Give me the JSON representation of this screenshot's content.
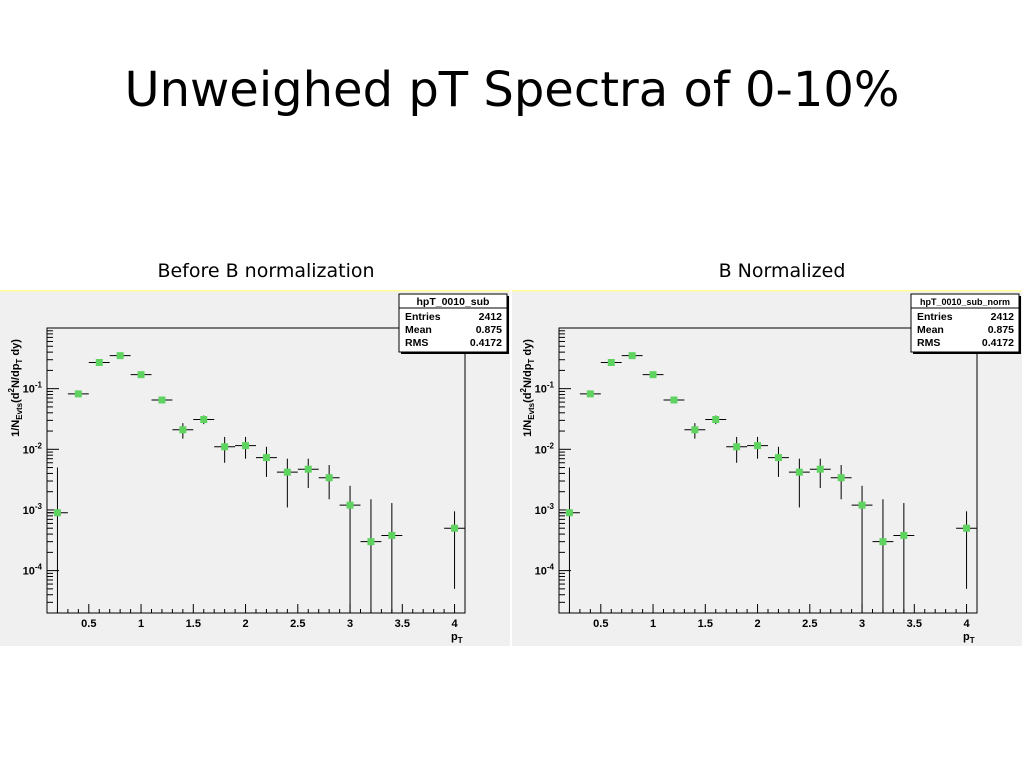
{
  "slide": {
    "title": "Unweighed pT Spectra of 0-10%"
  },
  "panels": [
    {
      "caption": "Before B normalization"
    },
    {
      "caption": "B Normalized"
    }
  ],
  "colors": {
    "background": "#ffffff",
    "plot_background": "#f0f0f0",
    "marker": "#5fd35f",
    "axis": "#000000",
    "panel_border": "#ffff99"
  },
  "icons": {
    "marker": "green-square-marker"
  },
  "chart_data": [
    {
      "type": "scatter",
      "title": "",
      "xlabel": "p_T",
      "ylabel": "1/N_Evts(d²N/dp_T dy)",
      "ylabel_parts": {
        "a": "1/N",
        "a_sub": "Evts",
        "b": "(d",
        "b_sup": "2",
        "c": "N/dp",
        "c_sub": "T",
        "d": " dy)"
      },
      "xlabel_parts": {
        "main": "p",
        "sub": "T"
      },
      "xlim": [
        0.1,
        4.1
      ],
      "ylim": [
        2e-05,
        1.0
      ],
      "yscale": "log",
      "grid": false,
      "x_ticks": [
        "0.5",
        "1",
        "1.5",
        "2",
        "2.5",
        "3",
        "3.5",
        "4"
      ],
      "y_ticks": [
        {
          "base": "10",
          "exp": "-1"
        },
        {
          "base": "10",
          "exp": "-2"
        },
        {
          "base": "10",
          "exp": "-3"
        },
        {
          "base": "10",
          "exp": "-4"
        }
      ],
      "stats_box": {
        "name": "hpT_0010_sub",
        "placement": "top-right",
        "rows": [
          {
            "label": "Entries",
            "value": "2412"
          },
          {
            "label": "Mean",
            "value": "0.875"
          },
          {
            "label": "RMS",
            "value": "0.4172"
          }
        ]
      },
      "series": [
        {
          "points": [
            {
              "x": 0.2,
              "y": 0.0009,
              "xerr": 0.1,
              "ylo": 1e-05,
              "yhi": 0.005
            },
            {
              "x": 0.4,
              "y": 0.082,
              "xerr": 0.1,
              "ylo": 0.082,
              "yhi": 0.082
            },
            {
              "x": 0.6,
              "y": 0.27,
              "xerr": 0.1,
              "ylo": 0.27,
              "yhi": 0.27
            },
            {
              "x": 0.8,
              "y": 0.35,
              "xerr": 0.1,
              "ylo": 0.35,
              "yhi": 0.35
            },
            {
              "x": 1.0,
              "y": 0.17,
              "xerr": 0.1,
              "ylo": 0.17,
              "yhi": 0.17
            },
            {
              "x": 1.2,
              "y": 0.065,
              "xerr": 0.1,
              "ylo": 0.065,
              "yhi": 0.065
            },
            {
              "x": 1.4,
              "y": 0.021,
              "xerr": 0.1,
              "ylo": 0.015,
              "yhi": 0.027
            },
            {
              "x": 1.6,
              "y": 0.031,
              "xerr": 0.1,
              "ylo": 0.026,
              "yhi": 0.036
            },
            {
              "x": 1.8,
              "y": 0.011,
              "xerr": 0.1,
              "ylo": 0.006,
              "yhi": 0.016
            },
            {
              "x": 2.0,
              "y": 0.0115,
              "xerr": 0.1,
              "ylo": 0.007,
              "yhi": 0.016
            },
            {
              "x": 2.2,
              "y": 0.0073,
              "xerr": 0.1,
              "ylo": 0.0035,
              "yhi": 0.011
            },
            {
              "x": 2.4,
              "y": 0.0042,
              "xerr": 0.1,
              "ylo": 0.0011,
              "yhi": 0.007
            },
            {
              "x": 2.6,
              "y": 0.0047,
              "xerr": 0.1,
              "ylo": 0.0023,
              "yhi": 0.007
            },
            {
              "x": 2.8,
              "y": 0.0034,
              "xerr": 0.1,
              "ylo": 0.0015,
              "yhi": 0.0055
            },
            {
              "x": 3.0,
              "y": 0.0012,
              "xerr": 0.1,
              "ylo": 1e-05,
              "yhi": 0.0025
            },
            {
              "x": 3.2,
              "y": 0.0003,
              "xerr": 0.1,
              "ylo": 1e-05,
              "yhi": 0.0015
            },
            {
              "x": 3.4,
              "y": 0.00038,
              "xerr": 0.1,
              "ylo": 1e-05,
              "yhi": 0.0013
            },
            {
              "x": 4.0,
              "y": 0.0005,
              "xerr": 0.1,
              "ylo": 5e-05,
              "yhi": 0.00095
            }
          ]
        }
      ]
    },
    {
      "type": "scatter",
      "title": "",
      "xlabel": "p_T",
      "ylabel": "1/N_Evts(d²N/dp_T dy)",
      "ylabel_parts": {
        "a": "1/N",
        "a_sub": "Evts",
        "b": "(d",
        "b_sup": "2",
        "c": "N/dp",
        "c_sub": "T",
        "d": " dy)"
      },
      "xlabel_parts": {
        "main": "p",
        "sub": "T"
      },
      "xlim": [
        0.1,
        4.1
      ],
      "ylim": [
        2e-05,
        1.0
      ],
      "yscale": "log",
      "grid": false,
      "x_ticks": [
        "0.5",
        "1",
        "1.5",
        "2",
        "2.5",
        "3",
        "3.5",
        "4"
      ],
      "y_ticks": [
        {
          "base": "10",
          "exp": "-1"
        },
        {
          "base": "10",
          "exp": "-2"
        },
        {
          "base": "10",
          "exp": "-3"
        },
        {
          "base": "10",
          "exp": "-4"
        }
      ],
      "stats_box": {
        "name": "hpT_0010_sub_norm",
        "placement": "top-right",
        "rows": [
          {
            "label": "Entries",
            "value": "2412"
          },
          {
            "label": "Mean",
            "value": "0.875"
          },
          {
            "label": "RMS",
            "value": "0.4172"
          }
        ]
      },
      "series": [
        {
          "points": [
            {
              "x": 0.2,
              "y": 0.0009,
              "xerr": 0.1,
              "ylo": 1e-05,
              "yhi": 0.005
            },
            {
              "x": 0.4,
              "y": 0.082,
              "xerr": 0.1,
              "ylo": 0.082,
              "yhi": 0.082
            },
            {
              "x": 0.6,
              "y": 0.27,
              "xerr": 0.1,
              "ylo": 0.27,
              "yhi": 0.27
            },
            {
              "x": 0.8,
              "y": 0.35,
              "xerr": 0.1,
              "ylo": 0.35,
              "yhi": 0.35
            },
            {
              "x": 1.0,
              "y": 0.17,
              "xerr": 0.1,
              "ylo": 0.17,
              "yhi": 0.17
            },
            {
              "x": 1.2,
              "y": 0.065,
              "xerr": 0.1,
              "ylo": 0.065,
              "yhi": 0.065
            },
            {
              "x": 1.4,
              "y": 0.021,
              "xerr": 0.1,
              "ylo": 0.015,
              "yhi": 0.027
            },
            {
              "x": 1.6,
              "y": 0.031,
              "xerr": 0.1,
              "ylo": 0.026,
              "yhi": 0.036
            },
            {
              "x": 1.8,
              "y": 0.011,
              "xerr": 0.1,
              "ylo": 0.006,
              "yhi": 0.016
            },
            {
              "x": 2.0,
              "y": 0.0115,
              "xerr": 0.1,
              "ylo": 0.007,
              "yhi": 0.016
            },
            {
              "x": 2.2,
              "y": 0.0073,
              "xerr": 0.1,
              "ylo": 0.0035,
              "yhi": 0.011
            },
            {
              "x": 2.4,
              "y": 0.0042,
              "xerr": 0.1,
              "ylo": 0.0011,
              "yhi": 0.007
            },
            {
              "x": 2.6,
              "y": 0.0047,
              "xerr": 0.1,
              "ylo": 0.0023,
              "yhi": 0.007
            },
            {
              "x": 2.8,
              "y": 0.0034,
              "xerr": 0.1,
              "ylo": 0.0015,
              "yhi": 0.0055
            },
            {
              "x": 3.0,
              "y": 0.0012,
              "xerr": 0.1,
              "ylo": 1e-05,
              "yhi": 0.0025
            },
            {
              "x": 3.2,
              "y": 0.0003,
              "xerr": 0.1,
              "ylo": 1e-05,
              "yhi": 0.0015
            },
            {
              "x": 3.4,
              "y": 0.00038,
              "xerr": 0.1,
              "ylo": 1e-05,
              "yhi": 0.0013
            },
            {
              "x": 4.0,
              "y": 0.0005,
              "xerr": 0.1,
              "ylo": 5e-05,
              "yhi": 0.00095
            }
          ]
        }
      ]
    }
  ]
}
